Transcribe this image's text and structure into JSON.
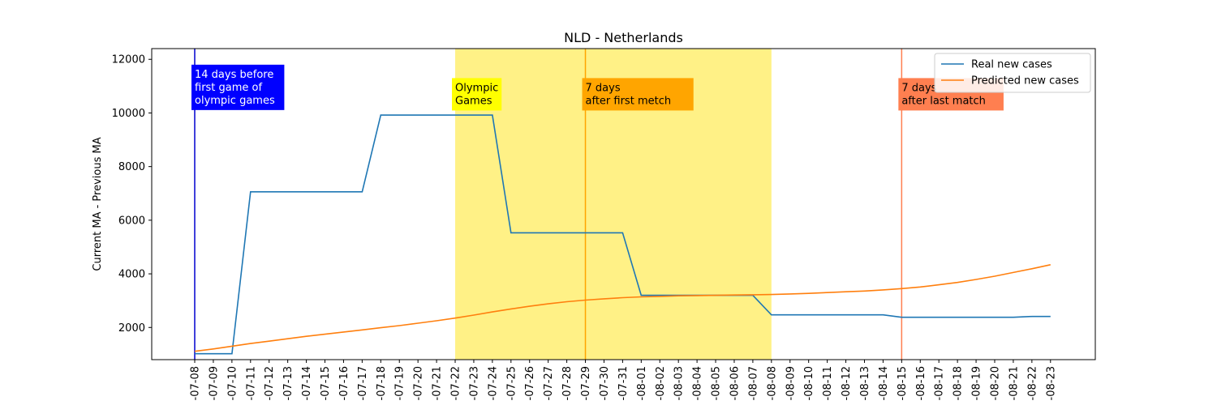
{
  "chart_data": {
    "type": "line",
    "title": "NLD - Netherlands",
    "xlabel": "",
    "ylabel": "Current MA - Previous MA",
    "ylim": [
      800,
      12400
    ],
    "yticks": [
      2000,
      4000,
      6000,
      8000,
      10000,
      12000
    ],
    "grid": false,
    "legend_position": "top-right",
    "x": [
      "2021-07-08",
      "2021-07-09",
      "2021-07-10",
      "2021-07-11",
      "2021-07-12",
      "2021-07-13",
      "2021-07-14",
      "2021-07-15",
      "2021-07-16",
      "2021-07-17",
      "2021-07-18",
      "2021-07-19",
      "2021-07-20",
      "2021-07-21",
      "2021-07-22",
      "2021-07-23",
      "2021-07-24",
      "2021-07-25",
      "2021-07-26",
      "2021-07-27",
      "2021-07-28",
      "2021-07-29",
      "2021-07-30",
      "2021-07-31",
      "2021-08-01",
      "2021-08-02",
      "2021-08-03",
      "2021-08-04",
      "2021-08-05",
      "2021-08-06",
      "2021-08-07",
      "2021-08-08",
      "2021-08-09",
      "2021-08-10",
      "2021-08-11",
      "2021-08-12",
      "2021-08-13",
      "2021-08-14",
      "2021-08-15",
      "2021-08-16",
      "2021-08-17",
      "2021-08-18",
      "2021-08-19",
      "2021-08-20",
      "2021-08-21",
      "2021-08-22",
      "2021-08-23"
    ],
    "tick_labels": [
      "-07-08",
      "-07-09",
      "-07-10",
      "-07-11",
      "-07-12",
      "-07-13",
      "-07-14",
      "-07-15",
      "-07-16",
      "-07-17",
      "-07-18",
      "-07-19",
      "-07-20",
      "-07-21",
      "-07-22",
      "-07-23",
      "-07-24",
      "-07-25",
      "-07-26",
      "-07-27",
      "-07-28",
      "-07-29",
      "-07-30",
      "-07-31",
      "-08-01",
      "-08-02",
      "-08-03",
      "-08-04",
      "-08-05",
      "-08-06",
      "-08-07",
      "-08-08",
      "-08-09",
      "-08-10",
      "-08-11",
      "-08-12",
      "-08-13",
      "-08-14",
      "-08-15",
      "-08-16",
      "-08-17",
      "-08-18",
      "-08-19",
      "-08-20",
      "-08-21",
      "-08-22",
      "-08-23"
    ],
    "series": [
      {
        "name": "Real new cases",
        "color": "#1f77b4",
        "values": [
          1020,
          1020,
          1020,
          7060,
          7060,
          7060,
          7060,
          7060,
          7060,
          7060,
          9920,
          9920,
          9920,
          9920,
          9920,
          9920,
          9920,
          5530,
          5530,
          5530,
          5530,
          5530,
          5530,
          5530,
          3200,
          3200,
          3200,
          3200,
          3200,
          3200,
          3200,
          2470,
          2470,
          2470,
          2470,
          2470,
          2470,
          2470,
          2380,
          2380,
          2380,
          2380,
          2380,
          2380,
          2380,
          2410,
          2410
        ]
      },
      {
        "name": "Predicted new cases",
        "color": "#ff7f0e",
        "values": [
          1110,
          1200,
          1300,
          1400,
          1490,
          1580,
          1670,
          1750,
          1830,
          1910,
          1990,
          2070,
          2160,
          2250,
          2350,
          2460,
          2580,
          2690,
          2790,
          2880,
          2960,
          3020,
          3070,
          3110,
          3140,
          3160,
          3180,
          3190,
          3200,
          3210,
          3220,
          3230,
          3250,
          3270,
          3300,
          3330,
          3360,
          3400,
          3450,
          3510,
          3590,
          3680,
          3790,
          3910,
          4050,
          4190,
          4340
        ]
      }
    ],
    "shaded_region": {
      "from": "2021-07-22",
      "to": "2021-08-08",
      "color": "#fff080"
    },
    "vertical_lines": [
      {
        "x": "2021-07-08",
        "color": "#0000cd"
      },
      {
        "x": "2021-07-29",
        "color": "#ffa500"
      },
      {
        "x": "2021-08-15",
        "color": "#ff7f50"
      }
    ],
    "annotations": [
      {
        "x": "2021-07-08",
        "y_top": 11800,
        "lines": [
          "14 days before",
          "first game of",
          "olympic games"
        ],
        "bg": "#0000ff",
        "fg": "#ffffff"
      },
      {
        "x": "2021-07-22",
        "y_top": 11300,
        "lines": [
          "Olympic",
          "Games"
        ],
        "bg": "#ffff00",
        "fg": "#000000"
      },
      {
        "x": "2021-07-29",
        "y_top": 11300,
        "lines": [
          "7 days",
          "after first metch"
        ],
        "bg": "#ffa500",
        "fg": "#000000"
      },
      {
        "x": "2021-08-15",
        "y_top": 11300,
        "lines": [
          "7 days",
          "after last match"
        ],
        "bg": "#ff7f50",
        "fg": "#000000"
      }
    ]
  }
}
